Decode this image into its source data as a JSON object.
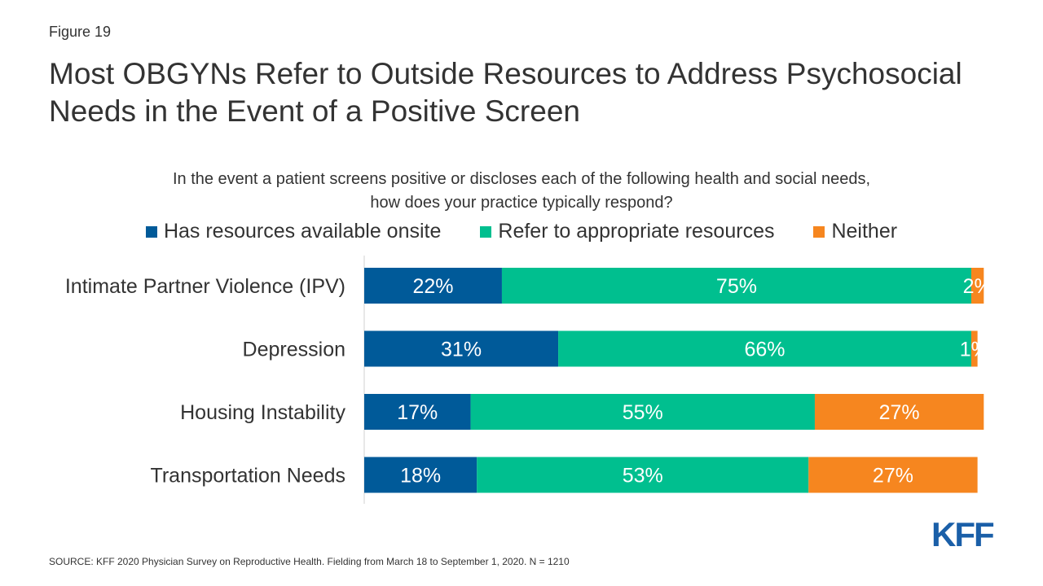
{
  "figure_label": "Figure 19",
  "title": "Most OBGYNs Refer to Outside Resources to Address Psychosocial Needs in the Event of a Positive Screen",
  "subtitle_line1": "In the event a patient screens positive or discloses each of the following health and social needs,",
  "subtitle_line2": "how does your practice typically respond?",
  "source": "SOURCE: KFF 2020 Physician Survey on Reproductive Health. Fielding from March 18 to September 1, 2020. N = 1210",
  "logo_text": "KFF",
  "chart_data": {
    "type": "bar",
    "orientation": "horizontal",
    "stacked": true,
    "categories": [
      "Intimate Partner Violence (IPV)",
      "Depression",
      "Housing Instability",
      "Transportation Needs"
    ],
    "series": [
      {
        "name": "Has resources available onsite",
        "color": "#005a99",
        "values": [
          22,
          31,
          17,
          18
        ]
      },
      {
        "name": "Refer to appropriate resources",
        "color": "#00bf8f",
        "values": [
          75,
          66,
          55,
          53
        ]
      },
      {
        "name": "Neither",
        "color": "#f6861f",
        "values": [
          2,
          1,
          27,
          27
        ]
      }
    ],
    "xlim": [
      0,
      100
    ],
    "legend_position": "top",
    "grid": false
  }
}
